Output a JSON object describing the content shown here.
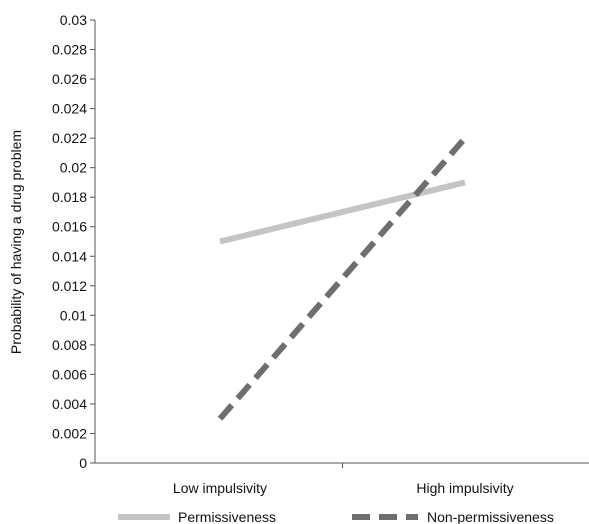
{
  "chart_data": {
    "type": "line",
    "title": "",
    "xlabel": "",
    "ylabel": "Probability of having a drug problem",
    "categories": [
      "Low impulsivity",
      "High impulsivity"
    ],
    "ylim": [
      0,
      0.03
    ],
    "y_ticks": [
      "0",
      "0.002",
      "0.004",
      "0.006",
      "0.008",
      "0.01",
      "0.012",
      "0.014",
      "0.016",
      "0.018",
      "0.02",
      "0.022",
      "0.024",
      "0.026",
      "0.028",
      "0.03"
    ],
    "grid": false,
    "legend_position": "bottom",
    "series": [
      {
        "name": "Permissiveness",
        "values": [
          0.015,
          0.019
        ],
        "color": "#c4c4c4",
        "style": "solid"
      },
      {
        "name": "Non-permissiveness",
        "values": [
          0.003,
          0.022
        ],
        "color": "#6e6e6e",
        "style": "dashed"
      }
    ]
  }
}
